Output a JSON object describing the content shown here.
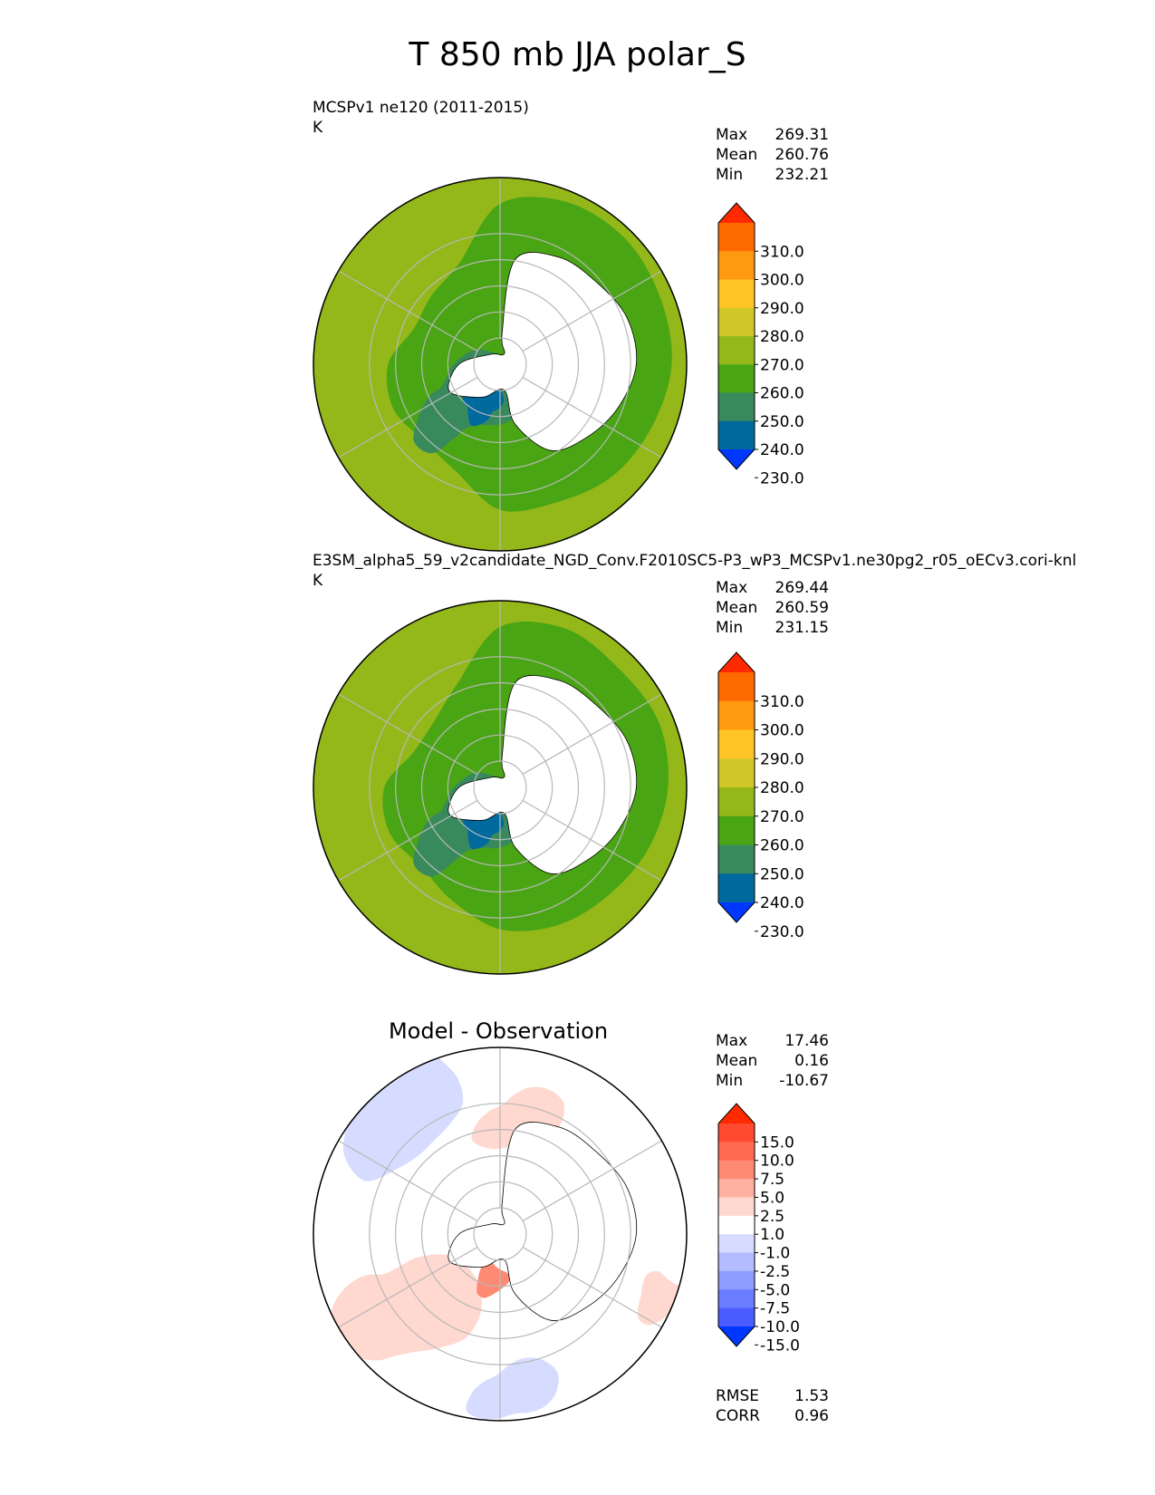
{
  "title": "T 850 mb JJA polar_S",
  "panels": [
    {
      "id": "test",
      "title": "MCSPv1 ne120 (2011-2015)",
      "units": "K",
      "stats": [
        {
          "label": "Max",
          "value": "269.31"
        },
        {
          "label": "Mean",
          "value": "260.76"
        },
        {
          "label": "Min",
          "value": "232.21"
        }
      ]
    },
    {
      "id": "reference",
      "title": "E3SM_alpha5_59_v2candidate_NGD_Conv.F2010SC5-P3_wP3_MCSPv1.ne30pg2_r05_oECv3.cori-knl",
      "units": "K",
      "stats": [
        {
          "label": "Max",
          "value": "269.44"
        },
        {
          "label": "Mean",
          "value": "260.59"
        },
        {
          "label": "Min",
          "value": "231.15"
        }
      ]
    },
    {
      "id": "difference",
      "title": "Model - Observation",
      "stats": [
        {
          "label": "Max",
          "value": "17.46"
        },
        {
          "label": "Mean",
          "value": "0.16"
        },
        {
          "label": "Min",
          "value": "-10.67"
        }
      ],
      "metrics": [
        {
          "label": "RMSE",
          "value": "1.53"
        },
        {
          "label": "CORR",
          "value": "0.96"
        }
      ]
    }
  ],
  "colorbars": {
    "field": {
      "tick_labels": [
        "310.0",
        "300.0",
        "290.0",
        "280.0",
        "270.0",
        "260.0",
        "250.0",
        "240.0",
        "230.0"
      ],
      "colors": [
        "#ff2a00",
        "#ff6a00",
        "#ff9a10",
        "#ffc425",
        "#d2c728",
        "#94b81a",
        "#4aa514",
        "#388a5c",
        "#00699e",
        "#0038ff"
      ]
    },
    "diff": {
      "tick_labels": [
        "15.0",
        "10.0",
        "7.5",
        "5.0",
        "2.5",
        "1.0",
        "-1.0",
        "-2.5",
        "-5.0",
        "-7.5",
        "-10.0",
        "-15.0"
      ],
      "colors": [
        "#ff2a00",
        "#ff4a30",
        "#ff6a50",
        "#ff8a74",
        "#ffb0a0",
        "#ffd8d0",
        "#ffffff",
        "#d6dcff",
        "#b2bcff",
        "#8c9cff",
        "#6a7cff",
        "#4a5cff",
        "#0038ff"
      ]
    }
  },
  "map_colors": {
    "land_mask": "#ffffff",
    "grid": "#b8b8b8",
    "coast": "#000000"
  }
}
